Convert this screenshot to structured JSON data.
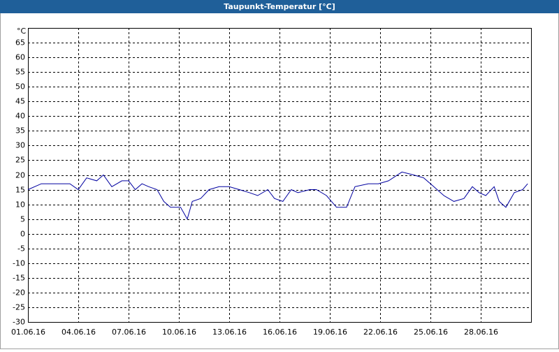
{
  "chart_data": {
    "type": "line",
    "title": "Taupunkt-Temperatur [°C]",
    "y_label": "°C",
    "x": [
      0,
      0.8,
      1.7,
      2.5,
      3,
      3.5,
      4.1,
      4.5,
      5,
      5.6,
      6,
      6.4,
      6.8,
      7.2,
      7.7,
      8.1,
      8.5,
      9.1,
      9.5,
      9.8,
      10.3,
      10.8,
      11.4,
      12,
      12.6,
      13.2,
      13.7,
      14.3,
      14.7,
      15.2,
      15.7,
      16.1,
      16.8,
      17.2,
      17.8,
      18.4,
      19,
      19.5,
      20.3,
      20.9,
      21.5,
      22.3,
      23,
      23.6,
      24.2,
      24.8,
      25.4,
      26,
      26.5,
      26.9,
      27.3,
      27.8,
      28.1,
      28.5,
      29,
      29.5,
      29.8
    ],
    "series": [
      {
        "name": "Taupunkt",
        "color": "#0000a0",
        "values": [
          15,
          17,
          17,
          17,
          15,
          19,
          18,
          20,
          16,
          18,
          18,
          15,
          17,
          16,
          15,
          11,
          9,
          9,
          5,
          11,
          12,
          15,
          16,
          16,
          15,
          14,
          13,
          15,
          12,
          11,
          15,
          14,
          15,
          15,
          13,
          9,
          9,
          16,
          17,
          17,
          18,
          21,
          20,
          19,
          16,
          13,
          11,
          12,
          16,
          14,
          13,
          16,
          11,
          9,
          14,
          15,
          17
        ]
      }
    ],
    "xlim": [
      0,
      30
    ],
    "xticks": [
      {
        "value": 0,
        "label": "01.06.16"
      },
      {
        "value": 3,
        "label": "04.06.16"
      },
      {
        "value": 6,
        "label": "07.06.16"
      },
      {
        "value": 9,
        "label": "10.06.16"
      },
      {
        "value": 12,
        "label": "13.06.16"
      },
      {
        "value": 15,
        "label": "16.06.16"
      },
      {
        "value": 18,
        "label": "19.06.16"
      },
      {
        "value": 21,
        "label": "22.06.16"
      },
      {
        "value": 24,
        "label": "25.06.16"
      },
      {
        "value": 27,
        "label": "28.06.16"
      }
    ],
    "ylim": [
      -30,
      70
    ],
    "yticks": [
      -30,
      -25,
      -20,
      -15,
      -10,
      -5,
      0,
      5,
      10,
      15,
      20,
      25,
      30,
      35,
      40,
      45,
      50,
      55,
      60,
      65
    ],
    "grid": true
  }
}
